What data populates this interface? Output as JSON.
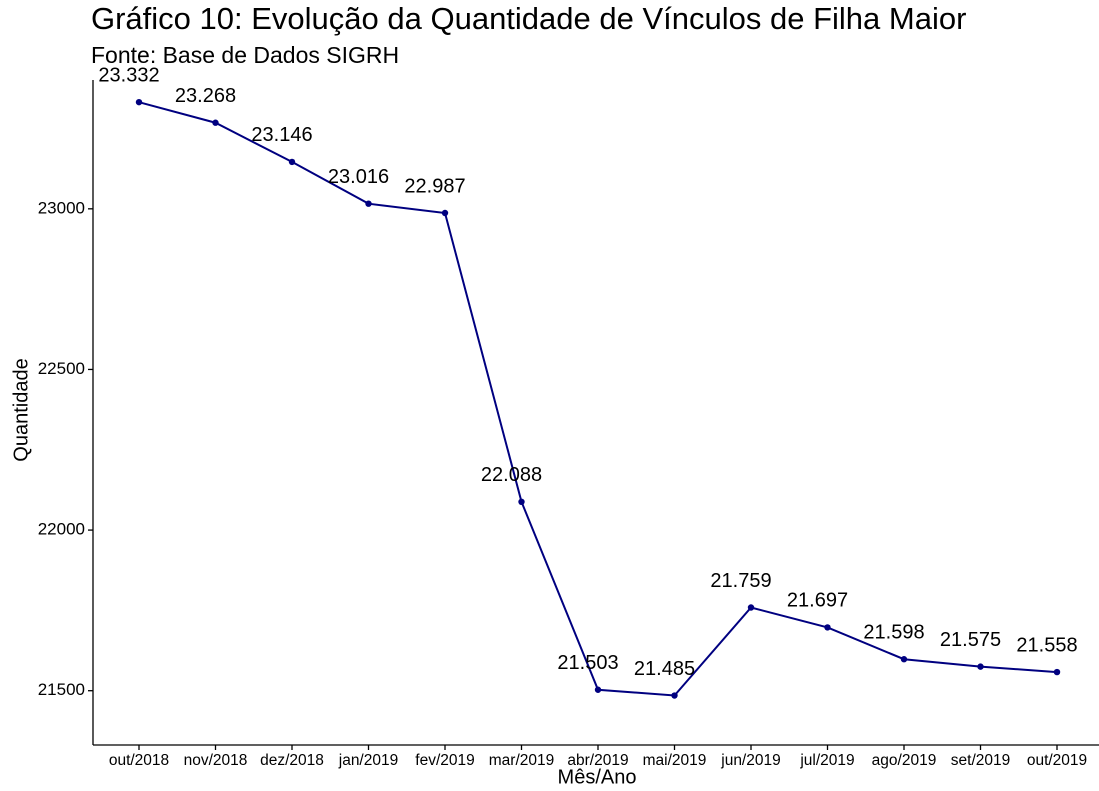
{
  "chart_data": {
    "type": "line",
    "title": "Gráfico 10: Evolução da Quantidade de Vínculos de Filha Maior",
    "subtitle": "Fonte: Base de Dados SIGRH",
    "x_label": "Mês/Ano",
    "y_label": "Quantidade",
    "categories": [
      "out/2018",
      "nov/2018",
      "dez/2018",
      "jan/2019",
      "fev/2019",
      "mar/2019",
      "abr/2019",
      "mai/2019",
      "jun/2019",
      "jul/2019",
      "ago/2019",
      "set/2019",
      "out/2019"
    ],
    "series": [
      {
        "name": "Quantidade",
        "color": "#000080",
        "values": [
          23332,
          23268,
          23146,
          23016,
          22987,
          22088,
          21503,
          21485,
          21759,
          21697,
          21598,
          21575,
          21558
        ],
        "value_labels": [
          "23.332",
          "23.268",
          "23.146",
          "23.016",
          "22.987",
          "22.088",
          "21.503",
          "21.485",
          "21.759",
          "21.697",
          "21.598",
          "21.575",
          "21.558"
        ]
      }
    ],
    "ylim": [
      21331,
      23401
    ],
    "yticks": [
      21500,
      22000,
      22500,
      23000
    ],
    "grid": false
  }
}
